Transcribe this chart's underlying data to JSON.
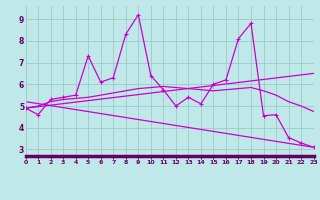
{
  "bg_color": "#c0e8e8",
  "line_color": "#cc00cc",
  "grid_color": "#99cccc",
  "axis_bar_color": "#660066",
  "tick_color": "#660066",
  "x_ticks": [
    0,
    1,
    2,
    3,
    4,
    5,
    6,
    7,
    8,
    9,
    10,
    11,
    12,
    13,
    14,
    15,
    16,
    17,
    18,
    19,
    20,
    21,
    22,
    23
  ],
  "y_ticks": [
    3,
    4,
    5,
    6,
    7,
    8,
    9
  ],
  "xlim": [
    0,
    23
  ],
  "ylim": [
    2.7,
    9.6
  ],
  "main_line_x": [
    0,
    1,
    2,
    3,
    4,
    5,
    6,
    7,
    8,
    9,
    10,
    11,
    12,
    13,
    14,
    15,
    16,
    17,
    18,
    19,
    20,
    21,
    22,
    23
  ],
  "main_line_y": [
    4.9,
    4.6,
    5.3,
    5.4,
    5.5,
    7.3,
    6.1,
    6.3,
    8.3,
    9.2,
    6.4,
    5.75,
    5.0,
    5.4,
    5.1,
    6.0,
    6.2,
    8.1,
    8.8,
    4.55,
    4.6,
    3.55,
    3.3,
    3.1
  ],
  "trend1_x": [
    0,
    23
  ],
  "trend1_y": [
    4.9,
    6.5
  ],
  "trend2_x": [
    0,
    23
  ],
  "trend2_y": [
    5.2,
    3.1
  ],
  "smooth_x": [
    0,
    1,
    2,
    3,
    4,
    5,
    6,
    7,
    8,
    9,
    10,
    11,
    12,
    13,
    14,
    15,
    16,
    17,
    18,
    19,
    20,
    21,
    22,
    23
  ],
  "smooth_y": [
    4.9,
    5.0,
    5.2,
    5.3,
    5.35,
    5.4,
    5.5,
    5.6,
    5.7,
    5.8,
    5.85,
    5.9,
    5.85,
    5.8,
    5.75,
    5.7,
    5.75,
    5.8,
    5.85,
    5.7,
    5.5,
    5.2,
    5.0,
    4.75
  ]
}
